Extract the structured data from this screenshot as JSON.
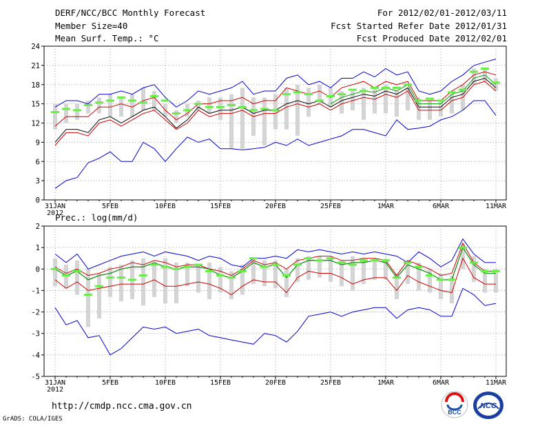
{
  "header": {
    "title": "DERF/NCC/BCC Monthly Forecast",
    "member": "Member Size=40",
    "variable": "Mean Surf. Temp.: °C",
    "range": "For 2012/02/01-2012/03/11",
    "started": "Fcst Started Refer Date 2012/01/31",
    "produced": "Fcst Produced Date 2012/02/01"
  },
  "footer": {
    "url": "http://cmdp.ncc.cma.gov.cn",
    "credit": "GrADS: COLA/IGES",
    "logo_bcc": "BCC",
    "logo_ncc": "NCC"
  },
  "colors": {
    "max_min": "#0000cc",
    "spread": "#cc0000",
    "mean": "#000000",
    "median": "#009900",
    "mode": "#66ee44",
    "box": "#d4d4d4",
    "grid": "#888888"
  },
  "chart_data": [
    {
      "type": "line",
      "ylabel": "Mean Surf. Temp.: °C",
      "ylim": [
        0,
        24
      ],
      "yticks": [
        "0",
        "3",
        "6",
        "9",
        "12",
        "15",
        "18",
        "21",
        "24"
      ],
      "x_count": 41,
      "x_ticks": [
        {
          "i": 0,
          "label": "31JAN",
          "sub": "2012"
        },
        {
          "i": 5,
          "label": "5FEB"
        },
        {
          "i": 10,
          "label": "10FEB"
        },
        {
          "i": 15,
          "label": "15FEB"
        },
        {
          "i": 20,
          "label": "20FEB"
        },
        {
          "i": 25,
          "label": "25FEB"
        },
        {
          "i": 30,
          "label": "1MAR"
        },
        {
          "i": 35,
          "label": "6MAR"
        },
        {
          "i": 40,
          "label": "11MAR"
        }
      ],
      "series": [
        {
          "name": "max",
          "values": [
            14.5,
            15.5,
            15.5,
            15,
            16.5,
            16.5,
            17,
            16.5,
            17.5,
            18,
            16,
            14.5,
            15.5,
            17,
            16.5,
            17,
            17.5,
            18.5,
            16.5,
            17,
            17,
            19,
            19.5,
            18,
            18.5,
            17.5,
            19,
            19,
            20,
            19.2,
            20.5,
            19.5,
            20,
            17,
            16.5,
            17,
            18.5,
            19.5,
            21,
            21.5,
            22
          ]
        },
        {
          "name": "upper",
          "values": [
            11.5,
            13,
            13,
            13,
            14.5,
            14.5,
            15,
            14.5,
            15.5,
            16,
            14,
            12.5,
            13.5,
            15,
            15,
            15.5,
            15.5,
            16,
            15,
            15.5,
            15.5,
            17.5,
            17,
            16.5,
            17,
            16,
            17.5,
            18,
            18.5,
            17.5,
            18.5,
            18,
            18.5,
            15.5,
            15.5,
            15.5,
            17,
            18,
            19.5,
            20,
            19.5
          ]
        },
        {
          "name": "mean",
          "values": [
            9,
            11,
            11,
            10.5,
            12.5,
            13,
            12,
            13,
            14,
            14.5,
            13,
            11.2,
            12.5,
            14.5,
            13.5,
            14,
            14,
            14.5,
            13.5,
            14,
            14,
            15,
            15.5,
            15,
            15.5,
            14.5,
            15.5,
            16,
            16.5,
            16.2,
            17,
            16.5,
            17.5,
            14.5,
            14.5,
            14.5,
            16,
            16.5,
            18.5,
            19,
            17.5
          ]
        },
        {
          "name": "lower",
          "values": [
            8.5,
            10.5,
            10.5,
            10,
            12,
            12.5,
            11.5,
            12.5,
            13.5,
            14,
            12.5,
            11,
            12,
            14,
            13,
            13.5,
            13.5,
            14,
            13,
            13.5,
            13.5,
            14.5,
            15,
            14.5,
            15,
            14,
            15,
            15.5,
            16,
            15.7,
            16.5,
            16,
            17,
            14,
            14,
            14,
            15.5,
            16,
            18,
            18.5,
            17
          ]
        },
        {
          "name": "min",
          "values": [
            1.8,
            3,
            3.5,
            5.8,
            6.5,
            7.5,
            6,
            6,
            9,
            8,
            6,
            8,
            9.8,
            9,
            9.5,
            8,
            8,
            7.8,
            8,
            8.2,
            9,
            8.5,
            9.5,
            8.5,
            9,
            9.5,
            10,
            11,
            11,
            10.5,
            10,
            12.5,
            11,
            11.2,
            11.5,
            12.5,
            13,
            14,
            15.5,
            15.5,
            13.2
          ]
        }
      ],
      "boxes": [
        [
          11,
          15
        ],
        [
          12,
          15
        ],
        [
          12.5,
          15
        ],
        [
          13.5,
          15.5
        ],
        [
          13.5,
          16
        ],
        [
          13,
          16.5
        ],
        [
          13,
          16
        ],
        [
          13,
          16.5
        ],
        [
          14,
          17.5
        ],
        [
          14,
          17
        ],
        [
          13,
          15
        ],
        [
          12,
          14
        ],
        [
          13,
          15
        ],
        [
          14,
          15.5
        ],
        [
          13.5,
          16
        ],
        [
          12.5,
          16
        ],
        [
          8,
          16.5
        ],
        [
          8,
          17.5
        ],
        [
          10,
          16
        ],
        [
          8.5,
          16
        ],
        [
          11,
          16.5
        ],
        [
          11,
          17.5
        ],
        [
          10,
          18
        ],
        [
          13,
          17.5
        ],
        [
          15,
          18
        ],
        [
          14.5,
          17.5
        ],
        [
          13.5,
          17
        ],
        [
          14,
          17
        ],
        [
          12.5,
          17.5
        ],
        [
          13.5,
          17.5
        ],
        [
          13.5,
          18
        ],
        [
          13,
          17
        ],
        [
          14,
          17.5
        ],
        [
          12.5,
          16
        ],
        [
          12.5,
          15.5
        ],
        [
          13,
          15.5
        ],
        [
          13.5,
          16.5
        ],
        [
          14,
          18
        ],
        [
          18,
          20.5
        ],
        [
          18.5,
          20.5
        ],
        [
          17,
          19
        ]
      ],
      "mode": [
        13.7,
        14.2,
        14,
        14.8,
        15.2,
        15.5,
        16,
        15.5,
        15.2,
        16.2,
        15.5,
        13.5,
        14,
        15,
        14.5,
        14.5,
        14.8,
        14.5,
        14,
        14.2,
        14,
        16.5,
        16.8,
        16.5,
        15.5,
        16.2,
        16.5,
        17.2,
        17,
        17.5,
        17.5,
        17.5,
        18,
        15.5,
        15.8,
        15.5,
        16.8,
        17.2,
        20,
        20.5,
        18.3
      ],
      "median": [
        null,
        null,
        null,
        null,
        null,
        null,
        null,
        null,
        null,
        null,
        null,
        null,
        null,
        null,
        null,
        null,
        null,
        null,
        null,
        null,
        null,
        null,
        null,
        null,
        null,
        15,
        16,
        16.5,
        17,
        16.8,
        17.5,
        17,
        18,
        15,
        15,
        15,
        16.5,
        17,
        19,
        19.5,
        18
      ]
    },
    {
      "type": "line",
      "ylabel": "Prec.: log(mm/d)",
      "ylim": [
        -5,
        2
      ],
      "yticks": [
        "-5",
        "-4",
        "-3",
        "-2",
        "-1",
        "0",
        "1",
        "2"
      ],
      "x_count": 41,
      "x_ticks": [
        {
          "i": 0,
          "label": "31JAN",
          "sub": "2012"
        },
        {
          "i": 5,
          "label": "5FEB"
        },
        {
          "i": 10,
          "label": "10FEB"
        },
        {
          "i": 15,
          "label": "15FEB"
        },
        {
          "i": 20,
          "label": "20FEB"
        },
        {
          "i": 25,
          "label": "25FEB"
        },
        {
          "i": 30,
          "label": "1MAR"
        },
        {
          "i": 35,
          "label": "6MAR"
        },
        {
          "i": 40,
          "label": "11MAR"
        }
      ],
      "series": [
        {
          "name": "max",
          "values": [
            0.7,
            0.3,
            0.7,
            0,
            0.2,
            0.4,
            0.6,
            0.7,
            0.8,
            0.6,
            0.8,
            0.7,
            0.6,
            0.4,
            0.6,
            0.5,
            0.2,
            0.1,
            0.5,
            0.5,
            0.6,
            0.5,
            0.9,
            0.8,
            0.9,
            0.8,
            0.7,
            0.8,
            0.7,
            0.8,
            0.7,
            0.6,
            0.3,
            0.8,
            0.5,
            0.1,
            0.4,
            1.4,
            0.7,
            0.3,
            0.3
          ]
        },
        {
          "name": "upper",
          "values": [
            0.1,
            -0.2,
            0,
            -0.3,
            -0.2,
            0,
            0.1,
            0.3,
            0.2,
            0.4,
            0.3,
            0.1,
            0.2,
            0.2,
            0,
            -0.1,
            -0.3,
            0,
            0.4,
            0.2,
            0.3,
            0,
            0.4,
            0.5,
            0.6,
            0.6,
            0.4,
            0.4,
            0.5,
            0.5,
            0.4,
            -0.3,
            0.4,
            0.2,
            0,
            -0.3,
            -0.2,
            1.2,
            0.3,
            -0.1,
            -0.1
          ]
        },
        {
          "name": "mean",
          "values": [
            0,
            -0.3,
            -0.1,
            -0.5,
            -0.3,
            -0.2,
            0,
            0.1,
            0.1,
            0.3,
            0.1,
            0,
            0.1,
            0.1,
            0,
            -0.3,
            -0.4,
            -0.1,
            0.3,
            0.1,
            0.2,
            -0.4,
            0.2,
            0.4,
            0.4,
            0.4,
            0.2,
            0.3,
            0.3,
            0.4,
            0.3,
            -0.4,
            0.2,
            0,
            -0.2,
            -0.5,
            -0.5,
            1,
            0.2,
            -0.2,
            -0.2
          ]
        },
        {
          "name": "lower",
          "values": [
            -0.5,
            -0.9,
            -0.6,
            -1,
            -0.9,
            -0.8,
            -0.7,
            -0.7,
            -0.7,
            -0.5,
            -0.8,
            -0.8,
            -0.7,
            -0.6,
            -0.7,
            -0.9,
            -1.2,
            -0.8,
            -0.5,
            -0.6,
            -0.6,
            -1.1,
            -0.4,
            -0.1,
            -0.2,
            -0.2,
            -0.4,
            -0.7,
            -0.5,
            -0.4,
            -0.4,
            -1,
            -0.3,
            -0.6,
            -0.8,
            -1,
            -1.1,
            0.5,
            -0.4,
            -0.7,
            -0.7
          ]
        },
        {
          "name": "min",
          "values": [
            -1.8,
            -2.6,
            -2.4,
            -3.2,
            -3.1,
            -4,
            -3.7,
            -3.2,
            -2.7,
            -2.8,
            -2.7,
            -3,
            -2.9,
            -2.8,
            -3.1,
            -3.2,
            -3.3,
            -3.4,
            -3.5,
            -3,
            -3.1,
            -3.4,
            -2.9,
            -2.2,
            -2.1,
            -2,
            -2.2,
            -2,
            -1.9,
            -1.8,
            -1.8,
            -2.3,
            -1.9,
            -1.8,
            -1.9,
            -2.2,
            -2.2,
            -0.9,
            -1.2,
            -1.7,
            -1.6
          ]
        }
      ],
      "boxes": [
        [
          -0.8,
          0.5
        ],
        [
          -0.9,
          0.2
        ],
        [
          -1.2,
          0.4
        ],
        [
          -2.7,
          0
        ],
        [
          -2.3,
          -0.2
        ],
        [
          -1.3,
          0.1
        ],
        [
          -1.5,
          0.2
        ],
        [
          -1.4,
          0.4
        ],
        [
          -1.7,
          0.5
        ],
        [
          -1.3,
          0.3
        ],
        [
          -1.6,
          0.5
        ],
        [
          -1.6,
          0.3
        ],
        [
          -0.8,
          0.3
        ],
        [
          -1.1,
          0.2
        ],
        [
          -1.4,
          0.3
        ],
        [
          -1.1,
          0.1
        ],
        [
          -1.4,
          -0.1
        ],
        [
          -1.2,
          0.2
        ],
        [
          -0.7,
          0.5
        ],
        [
          -0.8,
          0.4
        ],
        [
          -0.9,
          0.4
        ],
        [
          -1.3,
          0
        ],
        [
          -0.6,
          0.5
        ],
        [
          -0.5,
          0.6
        ],
        [
          -0.4,
          0.6
        ],
        [
          -0.6,
          0.5
        ],
        [
          -0.8,
          0.4
        ],
        [
          -1,
          0.6
        ],
        [
          -0.7,
          0.5
        ],
        [
          -0.5,
          0.5
        ],
        [
          -0.5,
          0.5
        ],
        [
          -1.4,
          -0.2
        ],
        [
          -0.7,
          0.4
        ],
        [
          -1,
          0.3
        ],
        [
          -1.1,
          0
        ],
        [
          -1.4,
          -0.2
        ],
        [
          -1.6,
          -0.3
        ],
        [
          0,
          1.2
        ],
        [
          -0.6,
          0.6
        ],
        [
          -1.1,
          0
        ],
        [
          -1.1,
          0
        ]
      ],
      "mode": [
        0,
        -0.3,
        -0.1,
        -1.2,
        -0.8,
        -0.4,
        -0.4,
        -0.5,
        -0.3,
        0.2,
        0.1,
        0,
        0.1,
        0.2,
        -0.1,
        -0.3,
        -0.4,
        -0.1,
        0.5,
        0.1,
        0.2,
        -0.3,
        0.2,
        0.5,
        0.4,
        0.5,
        0.3,
        0.2,
        0.4,
        0.4,
        0.4,
        -0.4,
        0.3,
        0.1,
        -0.3,
        -0.5,
        -0.5,
        1,
        0.3,
        -0.1,
        -0.1
      ],
      "median": [
        0,
        -0.3,
        -0.1,
        -0.5,
        -0.3,
        -0.2,
        0,
        0.1,
        0.1,
        0.3,
        0.1,
        0,
        0.1,
        0.1,
        0,
        -0.3,
        -0.4,
        -0.1,
        0.3,
        0.1,
        0.2,
        -0.4,
        0.2,
        0.4,
        0.4,
        0.4,
        0.2,
        0.3,
        0.3,
        0.4,
        0.3,
        -0.4,
        0.2,
        0,
        -0.2,
        -0.5,
        -0.5,
        1,
        0.2,
        -0.2,
        -0.2
      ]
    }
  ]
}
